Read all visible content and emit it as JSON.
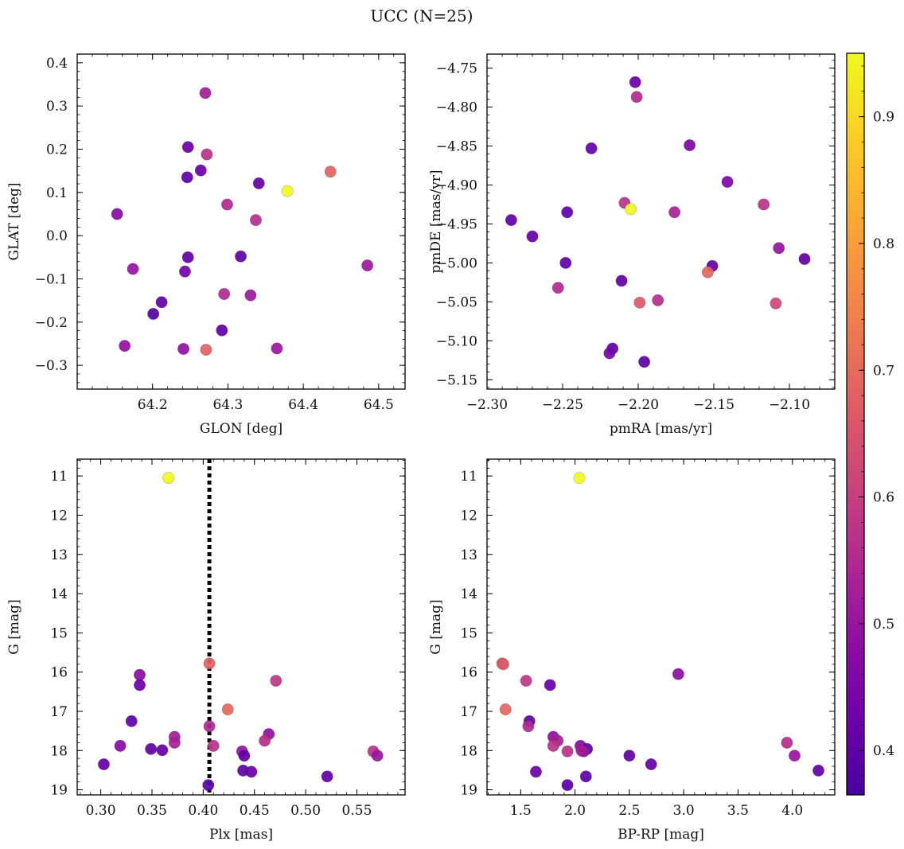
{
  "figure": {
    "title": "UCC (N=25)"
  },
  "colorbar": {
    "colormap": "plasma",
    "range": [
      0.365,
      0.95
    ],
    "ticks": [
      0.4,
      0.5,
      0.6,
      0.7,
      0.8,
      0.9
    ],
    "tick_labels": [
      "0.4",
      "0.5",
      "0.6",
      "0.7",
      "0.8",
      "0.9"
    ]
  },
  "chart_data": [
    {
      "type": "scatter",
      "title": "",
      "xlabel": "GLON [deg]",
      "ylabel": "GLAT [deg]",
      "xlim": [
        64.1,
        64.535
      ],
      "ylim": [
        -0.355,
        0.42
      ],
      "xticks": [
        64.2,
        64.3,
        64.4,
        64.5
      ],
      "xtick_labels": [
        "64.2",
        "64.3",
        "64.4",
        "64.5"
      ],
      "yticks": [
        -0.3,
        -0.2,
        -0.1,
        0.0,
        0.1,
        0.2,
        0.3,
        0.4
      ],
      "ytick_labels": [
        "−0.3",
        "−0.2",
        "−0.1",
        "0.0",
        "0.1",
        "0.2",
        "0.3",
        "0.4"
      ],
      "points": [
        {
          "x": 64.27,
          "y": 0.33,
          "c": 0.52
        },
        {
          "x": 64.247,
          "y": 0.205,
          "c": 0.42
        },
        {
          "x": 64.272,
          "y": 0.188,
          "c": 0.57
        },
        {
          "x": 64.264,
          "y": 0.151,
          "c": 0.42
        },
        {
          "x": 64.246,
          "y": 0.135,
          "c": 0.4
        },
        {
          "x": 64.436,
          "y": 0.148,
          "c": 0.68
        },
        {
          "x": 64.341,
          "y": 0.121,
          "c": 0.41
        },
        {
          "x": 64.379,
          "y": 0.103,
          "c": 0.95
        },
        {
          "x": 64.299,
          "y": 0.072,
          "c": 0.55
        },
        {
          "x": 64.153,
          "y": 0.05,
          "c": 0.47
        },
        {
          "x": 64.337,
          "y": 0.036,
          "c": 0.56
        },
        {
          "x": 64.247,
          "y": -0.05,
          "c": 0.41
        },
        {
          "x": 64.317,
          "y": -0.048,
          "c": 0.4
        },
        {
          "x": 64.485,
          "y": -0.069,
          "c": 0.51
        },
        {
          "x": 64.174,
          "y": -0.077,
          "c": 0.5
        },
        {
          "x": 64.243,
          "y": -0.083,
          "c": 0.43
        },
        {
          "x": 64.295,
          "y": -0.135,
          "c": 0.55
        },
        {
          "x": 64.33,
          "y": -0.138,
          "c": 0.51
        },
        {
          "x": 64.212,
          "y": -0.154,
          "c": 0.41
        },
        {
          "x": 64.201,
          "y": -0.181,
          "c": 0.38
        },
        {
          "x": 64.292,
          "y": -0.219,
          "c": 0.4
        },
        {
          "x": 64.163,
          "y": -0.255,
          "c": 0.49
        },
        {
          "x": 64.241,
          "y": -0.262,
          "c": 0.49
        },
        {
          "x": 64.271,
          "y": -0.264,
          "c": 0.68
        },
        {
          "x": 64.365,
          "y": -0.261,
          "c": 0.51
        }
      ]
    },
    {
      "type": "scatter",
      "title": "",
      "xlabel": "pmRA [mas/yr]",
      "ylabel": "pmDE [mas/yr]",
      "xlim": [
        -2.3,
        -2.07
      ],
      "ylim": [
        -5.162,
        -4.732
      ],
      "xticks": [
        -2.3,
        -2.25,
        -2.2,
        -2.15,
        -2.1
      ],
      "xtick_labels": [
        "−2.30",
        "−2.25",
        "−2.20",
        "−2.15",
        "−2.10"
      ],
      "yticks": [
        -5.15,
        -5.1,
        -5.05,
        -5.0,
        -4.95,
        -4.9,
        -4.85,
        -4.8,
        -4.75
      ],
      "ytick_labels": [
        "−5.15",
        "−5.10",
        "−5.05",
        "−5.00",
        "−4.95",
        "−4.90",
        "−4.85",
        "−4.80",
        "−4.75"
      ],
      "points": [
        {
          "x": -2.202,
          "y": -4.768,
          "c": 0.42
        },
        {
          "x": -2.201,
          "y": -4.787,
          "c": 0.55
        },
        {
          "x": -2.231,
          "y": -4.853,
          "c": 0.41
        },
        {
          "x": -2.166,
          "y": -4.849,
          "c": 0.45
        },
        {
          "x": -2.141,
          "y": -4.896,
          "c": 0.45
        },
        {
          "x": -2.209,
          "y": -4.923,
          "c": 0.57
        },
        {
          "x": -2.205,
          "y": -4.931,
          "c": 0.95
        },
        {
          "x": -2.117,
          "y": -4.925,
          "c": 0.57
        },
        {
          "x": -2.176,
          "y": -4.935,
          "c": 0.53
        },
        {
          "x": -2.247,
          "y": -4.935,
          "c": 0.4
        },
        {
          "x": -2.284,
          "y": -4.945,
          "c": 0.4
        },
        {
          "x": -2.27,
          "y": -4.966,
          "c": 0.42
        },
        {
          "x": -2.107,
          "y": -4.981,
          "c": 0.5
        },
        {
          "x": -2.09,
          "y": -4.995,
          "c": 0.41
        },
        {
          "x": -2.248,
          "y": -5.0,
          "c": 0.4
        },
        {
          "x": -2.151,
          "y": -5.004,
          "c": 0.41
        },
        {
          "x": -2.154,
          "y": -5.012,
          "c": 0.69
        },
        {
          "x": -2.211,
          "y": -5.023,
          "c": 0.4
        },
        {
          "x": -2.253,
          "y": -5.032,
          "c": 0.55
        },
        {
          "x": -2.187,
          "y": -5.048,
          "c": 0.56
        },
        {
          "x": -2.199,
          "y": -5.051,
          "c": 0.66
        },
        {
          "x": -2.109,
          "y": -5.052,
          "c": 0.62
        },
        {
          "x": -2.217,
          "y": -5.11,
          "c": 0.4
        },
        {
          "x": -2.219,
          "y": -5.116,
          "c": 0.44
        },
        {
          "x": -2.196,
          "y": -5.127,
          "c": 0.4
        }
      ]
    },
    {
      "type": "scatter",
      "title": "",
      "xlabel": "Plx [mas]",
      "ylabel": "G [mag]",
      "xlim": [
        0.277,
        0.597
      ],
      "ylim": [
        19.13,
        10.57
      ],
      "y_inverted": true,
      "xticks": [
        0.3,
        0.35,
        0.4,
        0.45,
        0.5,
        0.55
      ],
      "xtick_labels": [
        "0.30",
        "0.35",
        "0.40",
        "0.45",
        "0.50",
        "0.55"
      ],
      "yticks": [
        11,
        12,
        13,
        14,
        15,
        16,
        17,
        18,
        19
      ],
      "ytick_labels": [
        "11",
        "12",
        "13",
        "14",
        "15",
        "16",
        "17",
        "18",
        "19"
      ],
      "vline": {
        "x": 0.406,
        "style": "dotted",
        "color": "#000000"
      },
      "points": [
        {
          "x": 0.366,
          "y": 11.05,
          "c": 0.95
        },
        {
          "x": 0.406,
          "y": 15.78,
          "c": 0.68
        },
        {
          "x": 0.338,
          "y": 16.07,
          "c": 0.48
        },
        {
          "x": 0.338,
          "y": 16.33,
          "c": 0.42
        },
        {
          "x": 0.471,
          "y": 16.22,
          "c": 0.58
        },
        {
          "x": 0.424,
          "y": 16.95,
          "c": 0.69
        },
        {
          "x": 0.33,
          "y": 17.25,
          "c": 0.4
        },
        {
          "x": 0.406,
          "y": 17.38,
          "c": 0.55
        },
        {
          "x": 0.372,
          "y": 17.65,
          "c": 0.52
        },
        {
          "x": 0.464,
          "y": 17.58,
          "c": 0.49
        },
        {
          "x": 0.372,
          "y": 17.8,
          "c": 0.53
        },
        {
          "x": 0.46,
          "y": 17.75,
          "c": 0.56
        },
        {
          "x": 0.319,
          "y": 17.88,
          "c": 0.47
        },
        {
          "x": 0.41,
          "y": 17.88,
          "c": 0.57
        },
        {
          "x": 0.349,
          "y": 17.96,
          "c": 0.4
        },
        {
          "x": 0.36,
          "y": 17.99,
          "c": 0.41
        },
        {
          "x": 0.438,
          "y": 18.02,
          "c": 0.5
        },
        {
          "x": 0.566,
          "y": 18.02,
          "c": 0.57
        },
        {
          "x": 0.44,
          "y": 18.13,
          "c": 0.4
        },
        {
          "x": 0.57,
          "y": 18.13,
          "c": 0.5
        },
        {
          "x": 0.303,
          "y": 18.35,
          "c": 0.41
        },
        {
          "x": 0.439,
          "y": 18.51,
          "c": 0.4
        },
        {
          "x": 0.447,
          "y": 18.54,
          "c": 0.42
        },
        {
          "x": 0.521,
          "y": 18.66,
          "c": 0.4
        },
        {
          "x": 0.405,
          "y": 18.88,
          "c": 0.39
        }
      ]
    },
    {
      "type": "scatter",
      "title": "",
      "xlabel": "BP-RP [mag]",
      "ylabel": "G [mag]",
      "xlim": [
        1.19,
        4.39
      ],
      "ylim": [
        19.13,
        10.57
      ],
      "y_inverted": true,
      "xticks": [
        1.5,
        2.0,
        2.5,
        3.0,
        3.5,
        4.0
      ],
      "xtick_labels": [
        "1.5",
        "2.0",
        "2.5",
        "3.0",
        "3.5",
        "4.0"
      ],
      "yticks": [
        11,
        12,
        13,
        14,
        15,
        16,
        17,
        18,
        19
      ],
      "ytick_labels": [
        "11",
        "12",
        "13",
        "14",
        "15",
        "16",
        "17",
        "18",
        "19"
      ],
      "points": [
        {
          "x": 2.04,
          "y": 11.05,
          "c": 0.95
        },
        {
          "x": 1.33,
          "y": 15.78,
          "c": 0.68
        },
        {
          "x": 2.95,
          "y": 16.05,
          "c": 0.48
        },
        {
          "x": 1.55,
          "y": 16.22,
          "c": 0.58
        },
        {
          "x": 1.77,
          "y": 16.33,
          "c": 0.42
        },
        {
          "x": 1.36,
          "y": 16.95,
          "c": 0.69
        },
        {
          "x": 1.58,
          "y": 17.25,
          "c": 0.4
        },
        {
          "x": 1.57,
          "y": 17.38,
          "c": 0.55
        },
        {
          "x": 1.8,
          "y": 17.65,
          "c": 0.49
        },
        {
          "x": 1.84,
          "y": 17.75,
          "c": 0.53
        },
        {
          "x": 3.95,
          "y": 17.8,
          "c": 0.56
        },
        {
          "x": 1.8,
          "y": 17.88,
          "c": 0.57
        },
        {
          "x": 2.05,
          "y": 17.88,
          "c": 0.47
        },
        {
          "x": 2.11,
          "y": 17.96,
          "c": 0.4
        },
        {
          "x": 1.93,
          "y": 18.02,
          "c": 0.57
        },
        {
          "x": 2.08,
          "y": 18.02,
          "c": 0.5
        },
        {
          "x": 2.5,
          "y": 18.13,
          "c": 0.4
        },
        {
          "x": 4.02,
          "y": 18.13,
          "c": 0.5
        },
        {
          "x": 2.7,
          "y": 18.35,
          "c": 0.41
        },
        {
          "x": 1.64,
          "y": 18.54,
          "c": 0.42
        },
        {
          "x": 4.24,
          "y": 18.51,
          "c": 0.4
        },
        {
          "x": 2.1,
          "y": 18.66,
          "c": 0.4
        },
        {
          "x": 1.93,
          "y": 18.88,
          "c": 0.39
        },
        {
          "x": 1.34,
          "y": 15.8,
          "c": 0.66
        },
        {
          "x": 2.06,
          "y": 18.0,
          "c": 0.52
        }
      ]
    }
  ]
}
